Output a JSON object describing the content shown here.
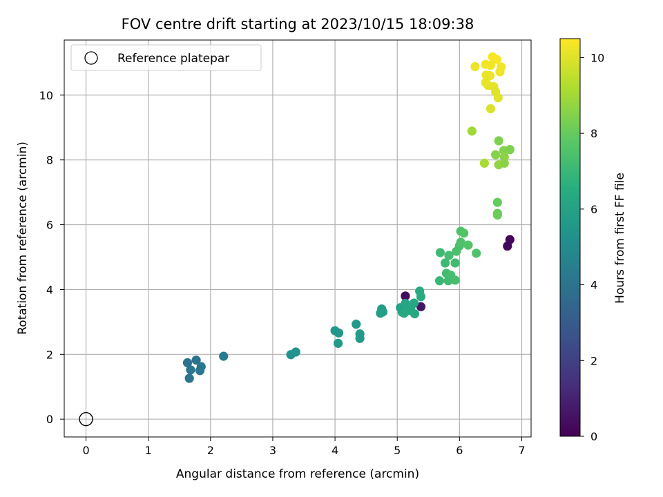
{
  "chart_data": {
    "type": "scatter",
    "title": "FOV centre drift starting at 2023/10/15 18:09:38",
    "xlabel": "Angular distance from reference (arcmin)",
    "ylabel": "Rotation from reference (arcmin)",
    "xlim": [
      -0.35,
      7.15
    ],
    "ylim": [
      -0.55,
      11.7
    ],
    "xticks": [
      "0",
      "1",
      "2",
      "3",
      "4",
      "5",
      "6",
      "7"
    ],
    "yticks": [
      "0",
      "2",
      "4",
      "6",
      "8",
      "10"
    ],
    "grid": true,
    "legend": {
      "position": "top-left",
      "entries": [
        "Reference platepar"
      ]
    },
    "reference_point": {
      "x": 0,
      "y": 0
    },
    "colorbar": {
      "label": "Hours from first FF file",
      "colormap": "viridis",
      "range": [
        0,
        10.5
      ],
      "ticks": [
        "0",
        "2",
        "4",
        "6",
        "8",
        "10"
      ]
    },
    "points": [
      {
        "x": 5.13,
        "y": 3.8,
        "h": 0.3
      },
      {
        "x": 5.38,
        "y": 3.47,
        "h": 0.6
      },
      {
        "x": 6.81,
        "y": 5.54,
        "h": 0.1
      },
      {
        "x": 6.77,
        "y": 5.34,
        "h": 0.2
      },
      {
        "x": 1.63,
        "y": 1.74,
        "h": 3.9
      },
      {
        "x": 1.77,
        "y": 1.82,
        "h": 4.0
      },
      {
        "x": 1.68,
        "y": 1.52,
        "h": 4.1
      },
      {
        "x": 1.66,
        "y": 1.26,
        "h": 4.0
      },
      {
        "x": 1.85,
        "y": 1.62,
        "h": 4.2
      },
      {
        "x": 1.83,
        "y": 1.5,
        "h": 4.1
      },
      {
        "x": 2.21,
        "y": 1.94,
        "h": 4.3
      },
      {
        "x": 3.29,
        "y": 1.99,
        "h": 5.3
      },
      {
        "x": 3.37,
        "y": 2.07,
        "h": 5.4
      },
      {
        "x": 4.0,
        "y": 2.73,
        "h": 5.5
      },
      {
        "x": 4.06,
        "y": 2.66,
        "h": 5.5
      },
      {
        "x": 4.05,
        "y": 2.34,
        "h": 5.6
      },
      {
        "x": 4.34,
        "y": 2.93,
        "h": 5.6
      },
      {
        "x": 4.4,
        "y": 2.63,
        "h": 5.7
      },
      {
        "x": 4.4,
        "y": 2.49,
        "h": 5.7
      },
      {
        "x": 4.75,
        "y": 3.4,
        "h": 5.8
      },
      {
        "x": 4.73,
        "y": 3.27,
        "h": 5.8
      },
      {
        "x": 4.77,
        "y": 3.31,
        "h": 5.9
      },
      {
        "x": 5.05,
        "y": 3.44,
        "h": 6.0
      },
      {
        "x": 5.08,
        "y": 3.3,
        "h": 6.0
      },
      {
        "x": 5.13,
        "y": 3.57,
        "h": 6.1
      },
      {
        "x": 5.18,
        "y": 3.35,
        "h": 6.1
      },
      {
        "x": 5.22,
        "y": 3.46,
        "h": 6.2
      },
      {
        "x": 5.27,
        "y": 3.58,
        "h": 6.2
      },
      {
        "x": 5.28,
        "y": 3.25,
        "h": 6.3
      },
      {
        "x": 5.11,
        "y": 3.27,
        "h": 6.3
      },
      {
        "x": 5.36,
        "y": 3.95,
        "h": 6.4
      },
      {
        "x": 5.38,
        "y": 3.78,
        "h": 6.4
      },
      {
        "x": 5.68,
        "y": 4.27,
        "h": 7.0
      },
      {
        "x": 5.69,
        "y": 5.14,
        "h": 7.1
      },
      {
        "x": 5.77,
        "y": 4.82,
        "h": 7.1
      },
      {
        "x": 5.79,
        "y": 4.5,
        "h": 7.2
      },
      {
        "x": 5.82,
        "y": 4.27,
        "h": 7.2
      },
      {
        "x": 5.83,
        "y": 5.05,
        "h": 7.3
      },
      {
        "x": 5.86,
        "y": 4.44,
        "h": 7.3
      },
      {
        "x": 5.93,
        "y": 4.82,
        "h": 7.2
      },
      {
        "x": 5.93,
        "y": 4.29,
        "h": 7.3
      },
      {
        "x": 5.95,
        "y": 5.18,
        "h": 7.4
      },
      {
        "x": 6.0,
        "y": 5.35,
        "h": 7.4
      },
      {
        "x": 6.02,
        "y": 5.8,
        "h": 7.5
      },
      {
        "x": 6.02,
        "y": 5.46,
        "h": 7.5
      },
      {
        "x": 6.07,
        "y": 5.74,
        "h": 7.6
      },
      {
        "x": 6.14,
        "y": 5.37,
        "h": 7.6
      },
      {
        "x": 6.27,
        "y": 5.12,
        "h": 7.5
      },
      {
        "x": 6.61,
        "y": 6.69,
        "h": 8.0
      },
      {
        "x": 6.61,
        "y": 6.35,
        "h": 8.0
      },
      {
        "x": 6.61,
        "y": 6.3,
        "h": 8.1
      },
      {
        "x": 6.58,
        "y": 8.16,
        "h": 8.5
      },
      {
        "x": 6.63,
        "y": 8.59,
        "h": 8.4
      },
      {
        "x": 6.71,
        "y": 8.29,
        "h": 8.5
      },
      {
        "x": 6.72,
        "y": 8.09,
        "h": 8.6
      },
      {
        "x": 6.81,
        "y": 8.32,
        "h": 8.4
      },
      {
        "x": 6.63,
        "y": 7.85,
        "h": 8.7
      },
      {
        "x": 6.72,
        "y": 7.9,
        "h": 8.6
      },
      {
        "x": 6.2,
        "y": 8.89,
        "h": 9.0
      },
      {
        "x": 6.4,
        "y": 7.9,
        "h": 9.1
      },
      {
        "x": 6.25,
        "y": 10.88,
        "h": 10.2
      },
      {
        "x": 6.42,
        "y": 10.95,
        "h": 10.3
      },
      {
        "x": 6.53,
        "y": 11.18,
        "h": 10.4
      },
      {
        "x": 6.6,
        "y": 11.1,
        "h": 10.4
      },
      {
        "x": 6.5,
        "y": 10.92,
        "h": 10.3
      },
      {
        "x": 6.67,
        "y": 10.87,
        "h": 10.3
      },
      {
        "x": 6.65,
        "y": 10.72,
        "h": 10.3
      },
      {
        "x": 6.43,
        "y": 10.62,
        "h": 10.2
      },
      {
        "x": 6.49,
        "y": 10.6,
        "h": 10.2
      },
      {
        "x": 6.42,
        "y": 10.39,
        "h": 10.1
      },
      {
        "x": 6.46,
        "y": 10.3,
        "h": 10.1
      },
      {
        "x": 6.55,
        "y": 10.26,
        "h": 10.1
      },
      {
        "x": 6.58,
        "y": 10.1,
        "h": 10.0
      },
      {
        "x": 6.62,
        "y": 9.92,
        "h": 10.0
      },
      {
        "x": 6.5,
        "y": 9.58,
        "h": 9.9
      }
    ]
  },
  "colors": {
    "grid": "#b0b0b0",
    "frame": "#000000",
    "legend_border": "#cccccc"
  }
}
